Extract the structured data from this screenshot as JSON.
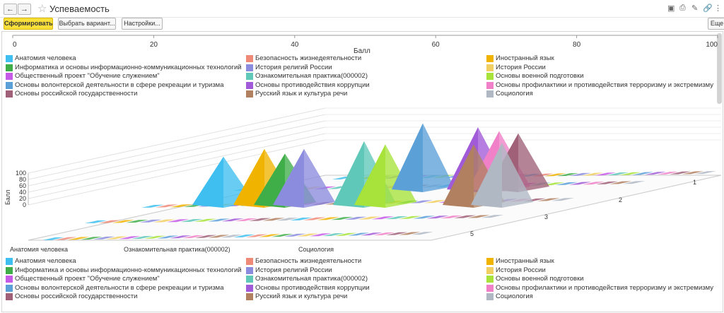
{
  "window": {
    "title": "Успеваемость",
    "back_icon": "arrow-left-icon",
    "forward_icon": "arrow-right-icon",
    "favorite_icon": "star-icon",
    "tool_icons": [
      "save-icon",
      "print-icon",
      "edit-icon",
      "link-icon",
      "more-icon"
    ]
  },
  "toolbar": {
    "generate_label": "Сформировать",
    "variant_label": "Выбрать вариант...",
    "settings_label": "Настройки...",
    "more_label": "Еще"
  },
  "chart_data": {
    "type": "bar",
    "style": "3d-pyramid",
    "x_axis": {
      "label": "Балл",
      "ticks": [
        "0",
        "20",
        "40",
        "60",
        "80",
        "100"
      ],
      "range": [
        0,
        100
      ]
    },
    "y_axis": {
      "label": "Балл",
      "ticks": [
        "0",
        "20",
        "40",
        "60",
        "80",
        "100"
      ],
      "range": [
        0,
        100
      ]
    },
    "category_labels_shown": [
      "Анатомия человека",
      "Ознакомительная практика(000002)",
      "Социология"
    ],
    "depth_labels": [
      "1",
      "2",
      "3",
      "5"
    ],
    "legend_position": "top and bottom",
    "grid": true,
    "series": [
      {
        "name": "Анатомия человека",
        "color": "#3fbfef",
        "value": 62
      },
      {
        "name": "Безопасность жизнедеятельности",
        "color": "#f08a78",
        "value": 0
      },
      {
        "name": "Иностранный язык",
        "color": "#f0b400",
        "value": 72
      },
      {
        "name": "Информатика и основы информационно-коммуникационных технологий",
        "color": "#3fae49",
        "value": 66
      },
      {
        "name": "История религий России",
        "color": "#8c8cde",
        "value": 72
      },
      {
        "name": "История России",
        "color": "#f2cf63",
        "value": 0
      },
      {
        "name": "Общественный проект \"Обучение служением\"",
        "color": "#c65be8",
        "value": 0
      },
      {
        "name": "Ознакомительная практика(000002)",
        "color": "#5fc8b8",
        "value": 82
      },
      {
        "name": "Основы военной подготовки",
        "color": "#a7e33a",
        "value": 78
      },
      {
        "name": "Основы волонтерской деятельности в сфере рекреации и туризма",
        "color": "#5ca0d8",
        "value": 85
      },
      {
        "name": "Основы противодействия коррупции",
        "color": "#a15ad8",
        "value": 80
      },
      {
        "name": "Основы профилактики и противодействия терроризму и экстремизму",
        "color": "#f080c8",
        "value": 75
      },
      {
        "name": "Основы российской государственности",
        "color": "#a06078",
        "value": 72
      },
      {
        "name": "Русский язык и культура речи",
        "color": "#b08060",
        "value": 78
      },
      {
        "name": "Социология",
        "color": "#b0b8c4",
        "value": 80
      }
    ]
  }
}
